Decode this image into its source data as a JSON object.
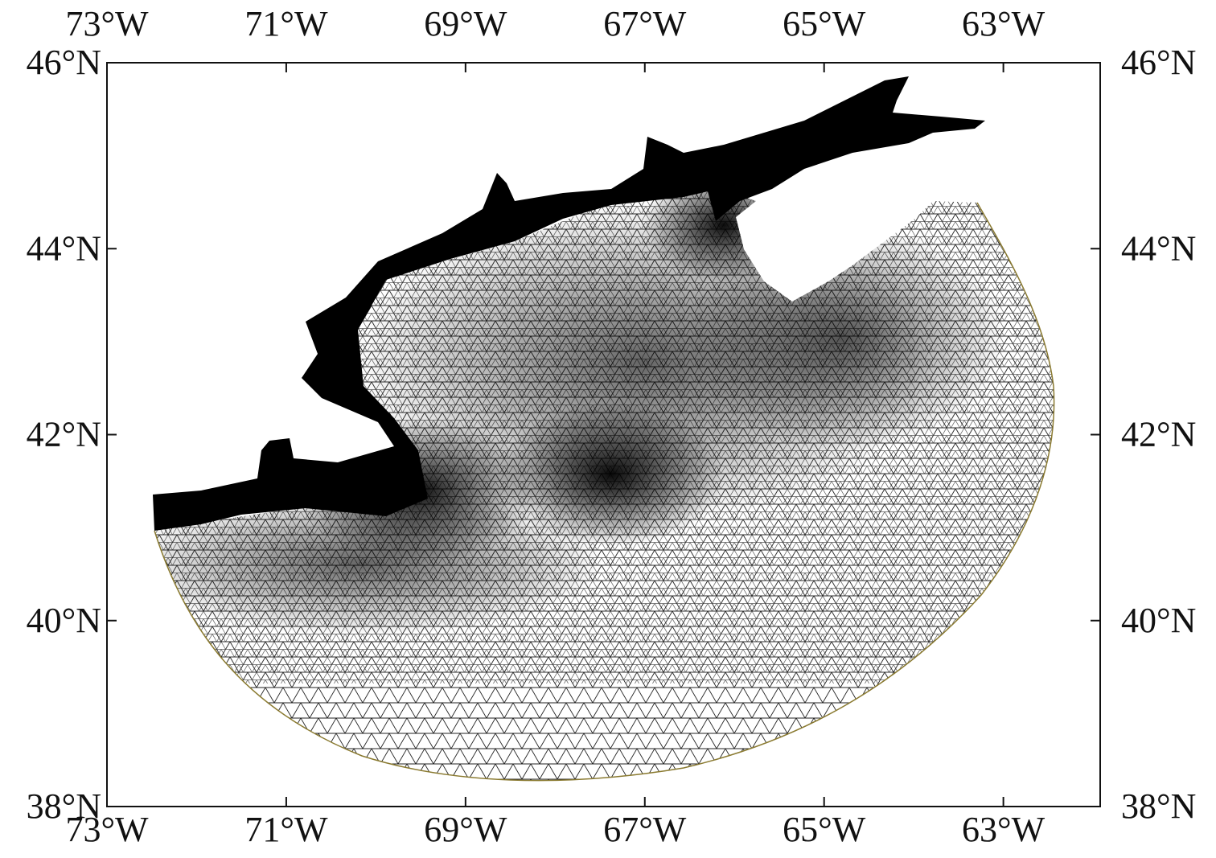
{
  "map": {
    "xlim": [
      -73,
      -61.92
    ],
    "ylim": [
      38,
      46
    ],
    "xticks": [
      {
        "value": -73,
        "label": "73°W"
      },
      {
        "value": -71,
        "label": "71°W"
      },
      {
        "value": -69,
        "label": "69°W"
      },
      {
        "value": -67,
        "label": "67°W"
      },
      {
        "value": -65,
        "label": "65°W"
      },
      {
        "value": -63,
        "label": "63°W"
      }
    ],
    "yticks": [
      {
        "value": 38,
        "label": "38°N"
      },
      {
        "value": 40,
        "label": "40°N"
      },
      {
        "value": 42,
        "label": "42°N"
      },
      {
        "value": 44,
        "label": "44°N"
      },
      {
        "value": 46,
        "label": "46°N"
      }
    ]
  }
}
